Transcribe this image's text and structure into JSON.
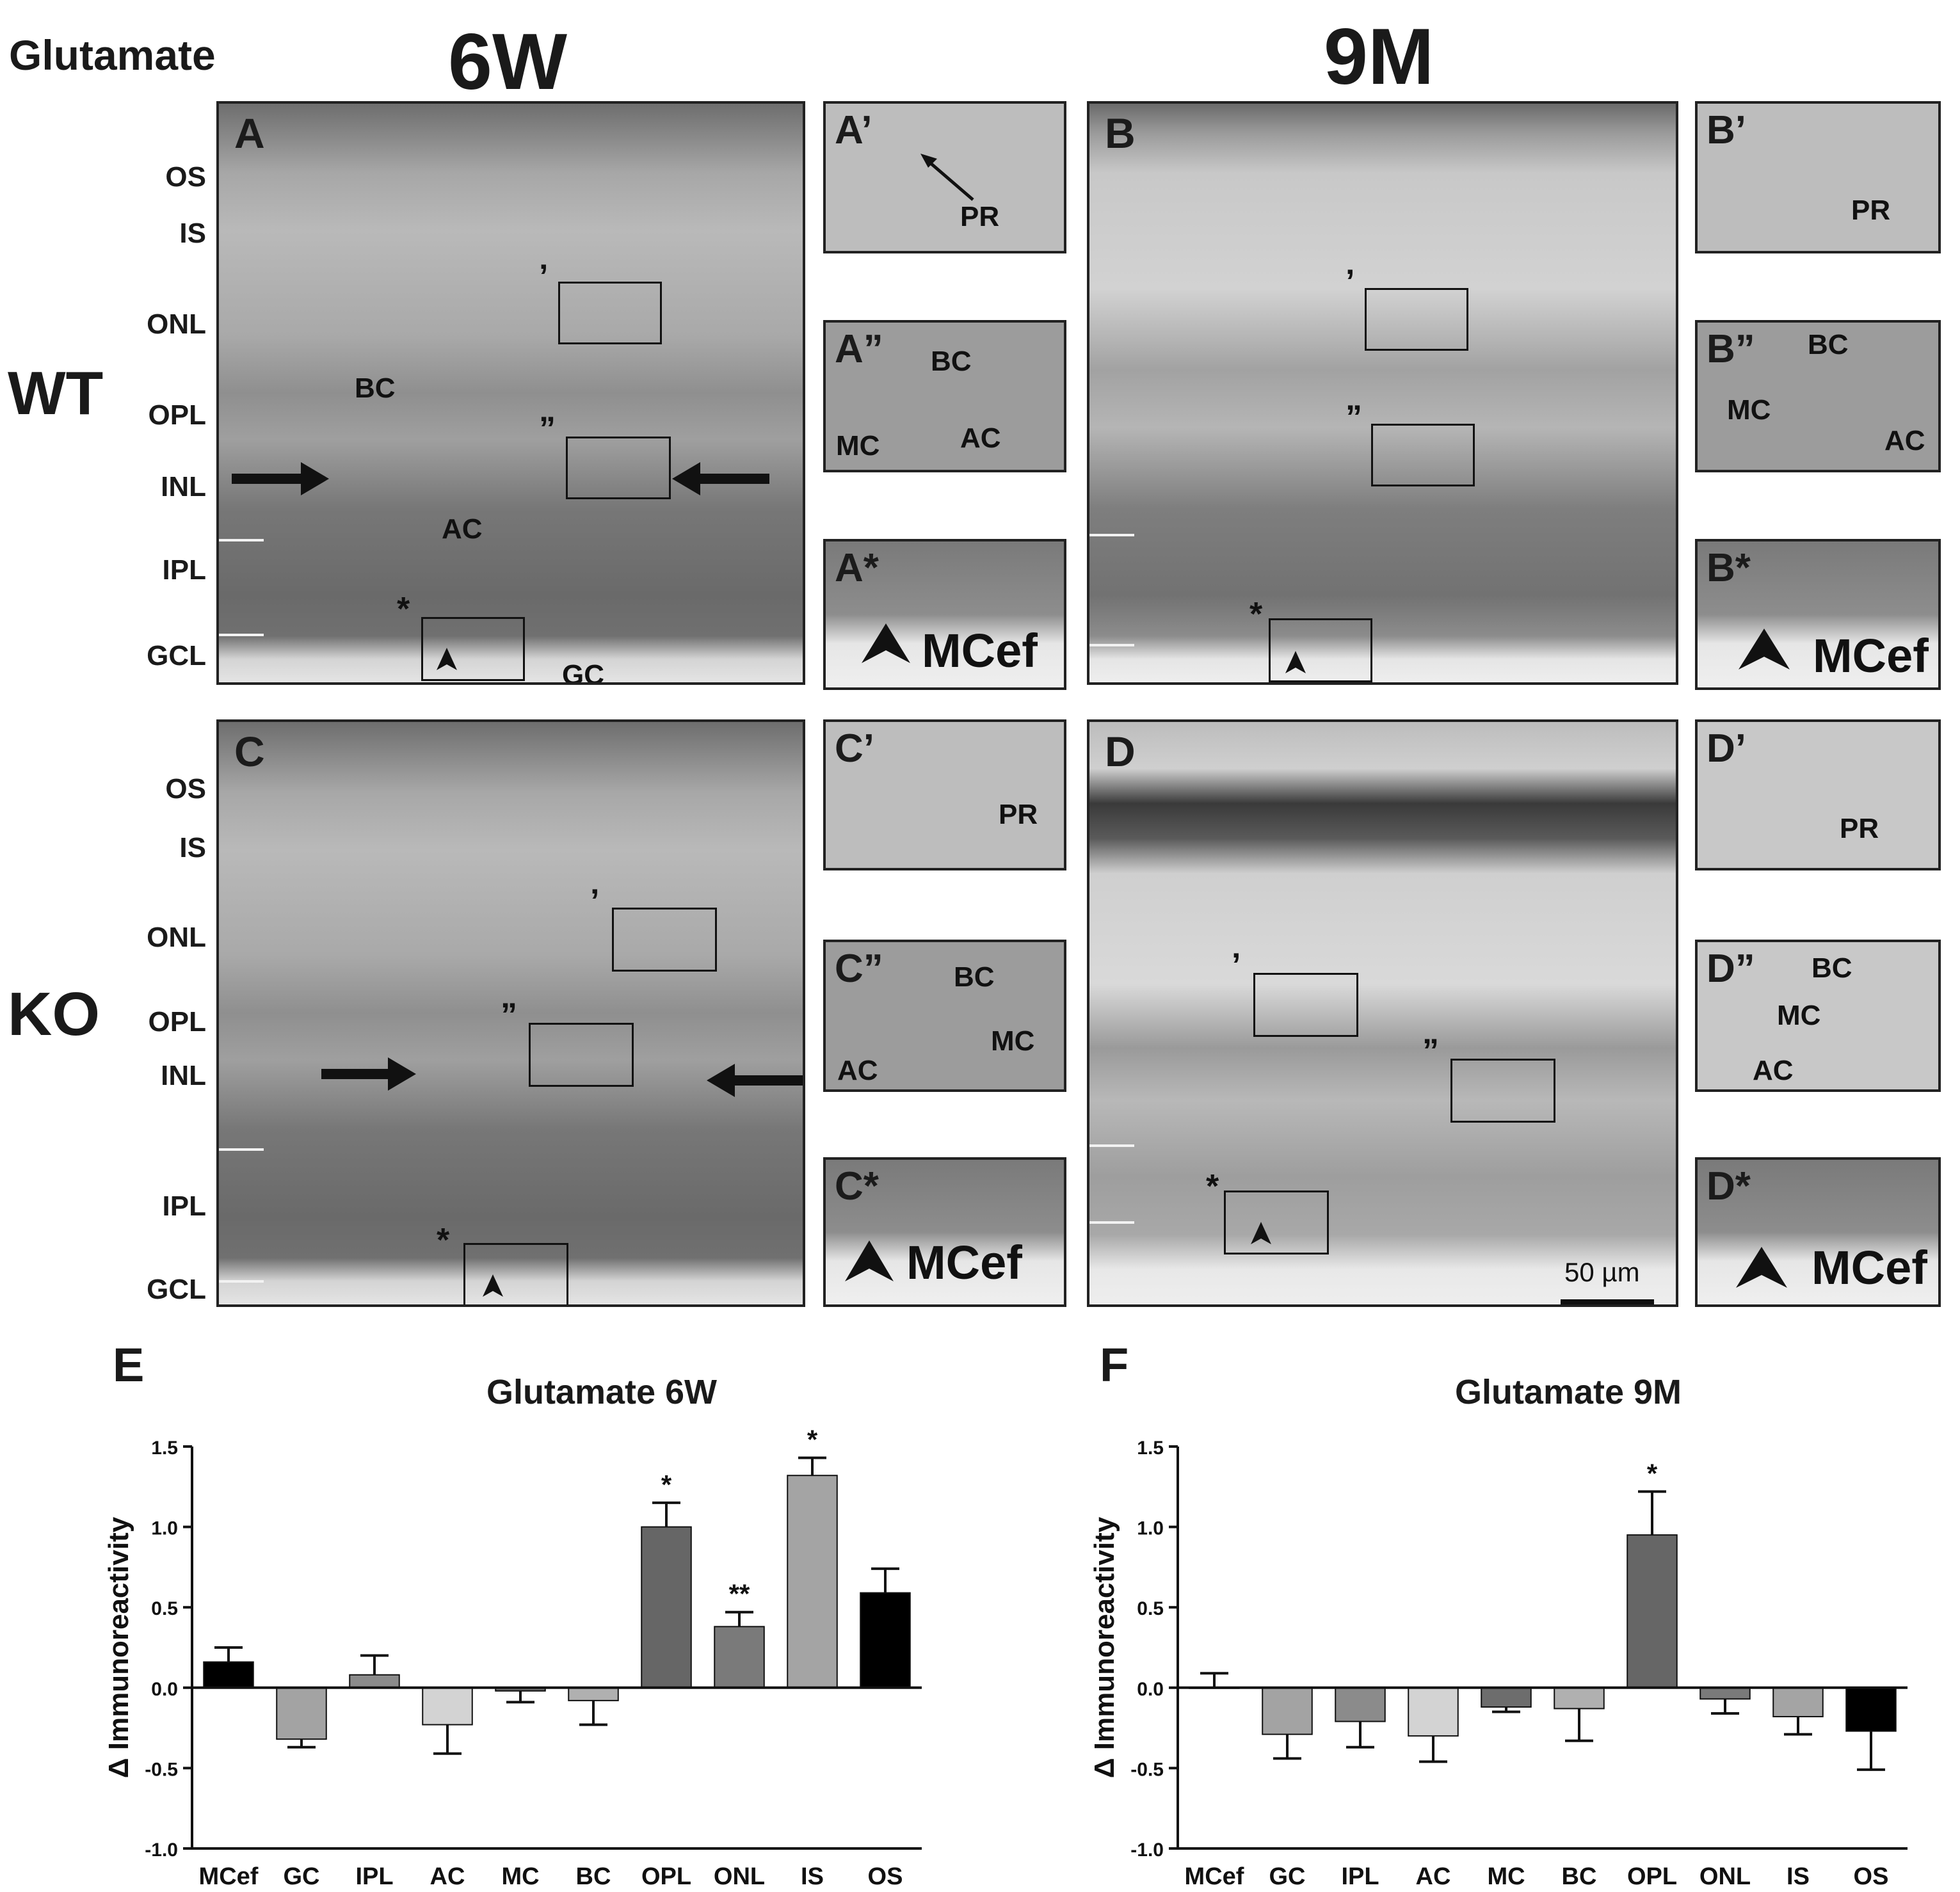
{
  "figure": {
    "corner_label": "Glutamate",
    "column_headers": [
      "6W",
      "9M"
    ],
    "row_labels": [
      "WT",
      "KO"
    ],
    "layer_labels_wt": [
      "OS",
      "IS",
      "ONL",
      "OPL",
      "INL",
      "IPL",
      "GCL"
    ],
    "layer_labels_ko": [
      "OS",
      "IS",
      "ONL",
      "OPL",
      "INL",
      "IPL",
      "GCL"
    ],
    "panels": {
      "A": {
        "letter": "A",
        "labels": [
          "BC",
          "AC",
          "GC"
        ],
        "marks": [
          "’",
          "”",
          "*"
        ]
      },
      "B": {
        "letter": "B",
        "marks": [
          "’",
          "”",
          "*"
        ]
      },
      "C": {
        "letter": "C",
        "marks": [
          "’",
          "”",
          "*"
        ]
      },
      "D": {
        "letter": "D",
        "marks": [
          "’",
          "”",
          "*"
        ],
        "scale_bar": "50 µm"
      }
    },
    "insets": {
      "A1": {
        "letter": "A’",
        "labels": [
          "PR"
        ]
      },
      "A2": {
        "letter": "A”",
        "labels": [
          "BC",
          "MC",
          "AC"
        ]
      },
      "A3": {
        "letter": "A*",
        "labels": [
          "MCef"
        ]
      },
      "B1": {
        "letter": "B’",
        "labels": [
          "PR"
        ]
      },
      "B2": {
        "letter": "B”",
        "labels": [
          "BC",
          "MC",
          "AC"
        ]
      },
      "B3": {
        "letter": "B*",
        "labels": [
          "MCef"
        ]
      },
      "C1": {
        "letter": "C’",
        "labels": [
          "PR"
        ]
      },
      "C2": {
        "letter": "C”",
        "labels": [
          "BC",
          "AC",
          "MC"
        ]
      },
      "C3": {
        "letter": "C*",
        "labels": [
          "MCef"
        ]
      },
      "D1": {
        "letter": "D’",
        "labels": [
          "PR"
        ]
      },
      "D2": {
        "letter": "D”",
        "labels": [
          "BC",
          "MC",
          "AC"
        ]
      },
      "D3": {
        "letter": "D*",
        "labels": [
          "MCef"
        ]
      }
    }
  },
  "chart_data": [
    {
      "panel": "E",
      "type": "bar",
      "title": "Glutamate 6W",
      "ylabel": "Δ Immunoreactivity",
      "ylim": [
        -1.0,
        1.5
      ],
      "yticks": [
        "1.5",
        "1.0",
        "0.5",
        "0.0",
        "-0.5",
        "-1.0"
      ],
      "categories": [
        "MCef",
        "GC",
        "IPL",
        "AC",
        "MC",
        "BC",
        "OPL",
        "ONL",
        "IS",
        "OS"
      ],
      "values": [
        0.16,
        -0.32,
        0.08,
        -0.23,
        -0.02,
        -0.08,
        1.0,
        0.38,
        1.32,
        0.59
      ],
      "errors": [
        0.09,
        0.05,
        0.12,
        0.18,
        0.07,
        0.15,
        0.15,
        0.09,
        0.11,
        0.15
      ],
      "colors": [
        "#000000",
        "#a3a3a3",
        "#8b8b8b",
        "#d3d3d3",
        "#6d6d6d",
        "#b0b0b0",
        "#666666",
        "#7a7a7a",
        "#a4a4a4",
        "#000000"
      ],
      "significance": [
        "",
        "",
        "",
        "",
        "",
        "",
        "*",
        "**",
        "*",
        ""
      ]
    },
    {
      "panel": "F",
      "type": "bar",
      "title": "Glutamate 9M",
      "ylabel": "Δ Immunoreactivity",
      "ylim": [
        -1.0,
        1.5
      ],
      "yticks": [
        "1.5",
        "1.0",
        "0.5",
        "0.0",
        "-0.5",
        "-1.0"
      ],
      "categories": [
        "MCef",
        "GC",
        "IPL",
        "AC",
        "MC",
        "BC",
        "OPL",
        "ONL",
        "IS",
        "OS"
      ],
      "values": [
        0.0,
        -0.29,
        -0.21,
        -0.3,
        -0.12,
        -0.13,
        0.95,
        -0.07,
        -0.18,
        -0.27
      ],
      "errors": [
        0.09,
        0.15,
        0.16,
        0.16,
        0.03,
        0.2,
        0.27,
        0.09,
        0.11,
        0.24
      ],
      "colors": [
        "#000000",
        "#a3a3a3",
        "#8b8b8b",
        "#d3d3d3",
        "#6d6d6d",
        "#b0b0b0",
        "#666666",
        "#7a7a7a",
        "#a4a4a4",
        "#000000"
      ],
      "significance": [
        "",
        "",
        "",
        "",
        "",
        "",
        "*",
        "",
        "",
        ""
      ]
    }
  ]
}
